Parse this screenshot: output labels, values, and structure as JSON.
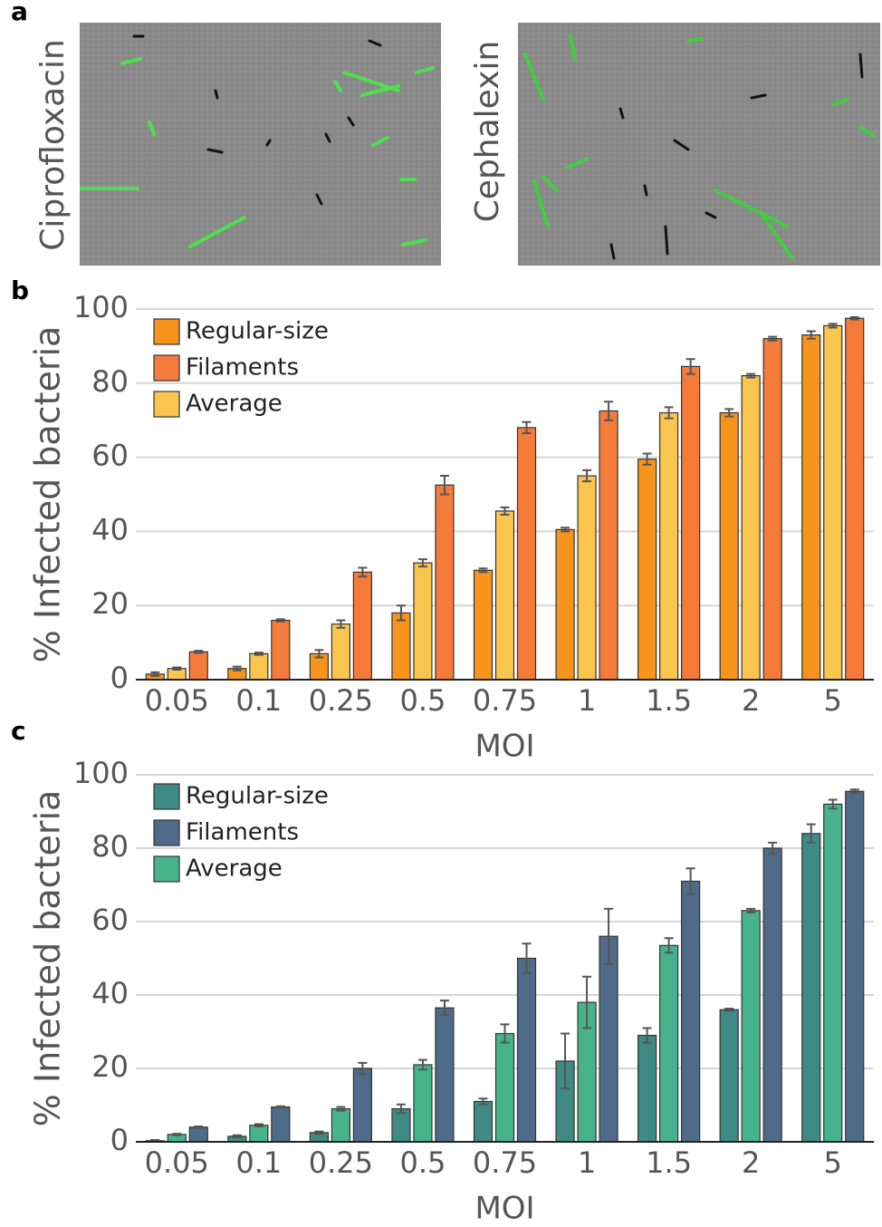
{
  "panels": {
    "a": "a",
    "b": "b",
    "c": "c"
  },
  "images": [
    "Ciprofloxacin",
    "Cephalexin"
  ],
  "chart_data": [
    {
      "type": "bar",
      "ylabel": "% Infected bacteria",
      "xlabel": "MOI",
      "categories": [
        "0.05",
        "0.1",
        "0.25",
        "0.5",
        "0.75",
        "1",
        "1.5",
        "2",
        "5"
      ],
      "ylim": [
        0,
        100
      ],
      "yticks": [
        0,
        20,
        40,
        60,
        80,
        100
      ],
      "grid": true,
      "series": [
        {
          "name": "Regular-size",
          "color": "#f7941d",
          "values": [
            1.5,
            3,
            7,
            18,
            29.5,
            40.5,
            59.5,
            72,
            93
          ],
          "errors": [
            0.5,
            0.5,
            1,
            2,
            0.5,
            0.5,
            1.5,
            1,
            1
          ]
        },
        {
          "name": "Filaments",
          "color": "#f47b3a",
          "values": [
            7.5,
            16,
            29,
            52.5,
            68,
            72.5,
            84.5,
            92,
            97.5
          ],
          "errors": [
            0.3,
            0.3,
            1.2,
            2.5,
            1.5,
            2.5,
            2,
            0.5,
            0.3
          ]
        },
        {
          "name": "Average",
          "color": "#f9c54e",
          "values": [
            3,
            7,
            15,
            31.5,
            45.5,
            55,
            72,
            82,
            95.5
          ],
          "errors": [
            0.3,
            0.3,
            1,
            1,
            1,
            1.5,
            1.5,
            0.5,
            0.5
          ]
        }
      ]
    },
    {
      "type": "bar",
      "ylabel": "% Infected bacteria",
      "xlabel": "MOI",
      "categories": [
        "0.05",
        "0.1",
        "0.25",
        "0.5",
        "0.75",
        "1",
        "1.5",
        "2",
        "5"
      ],
      "ylim": [
        0,
        100
      ],
      "yticks": [
        0,
        20,
        40,
        60,
        80,
        100
      ],
      "grid": true,
      "series": [
        {
          "name": "Regular-size",
          "color": "#3f8a84",
          "values": [
            0.3,
            1.5,
            2.5,
            9,
            11,
            22,
            29,
            36,
            84
          ],
          "errors": [
            0.2,
            0.3,
            0.3,
            1.2,
            0.8,
            7.5,
            2,
            0.3,
            2.5
          ]
        },
        {
          "name": "Filaments",
          "color": "#4f6b8a",
          "values": [
            4,
            9.5,
            20,
            36.5,
            50,
            56,
            71,
            80,
            95.5
          ],
          "errors": [
            0.2,
            0.2,
            1.5,
            2,
            4,
            7.5,
            3.5,
            1.5,
            0.5
          ]
        },
        {
          "name": "Average",
          "color": "#47b38c",
          "values": [
            2,
            4.5,
            9,
            21,
            29.5,
            38,
            53.5,
            63,
            92
          ],
          "errors": [
            0.2,
            0.3,
            0.5,
            1.3,
            2.5,
            7,
            2,
            0.5,
            1.2
          ]
        }
      ]
    }
  ]
}
